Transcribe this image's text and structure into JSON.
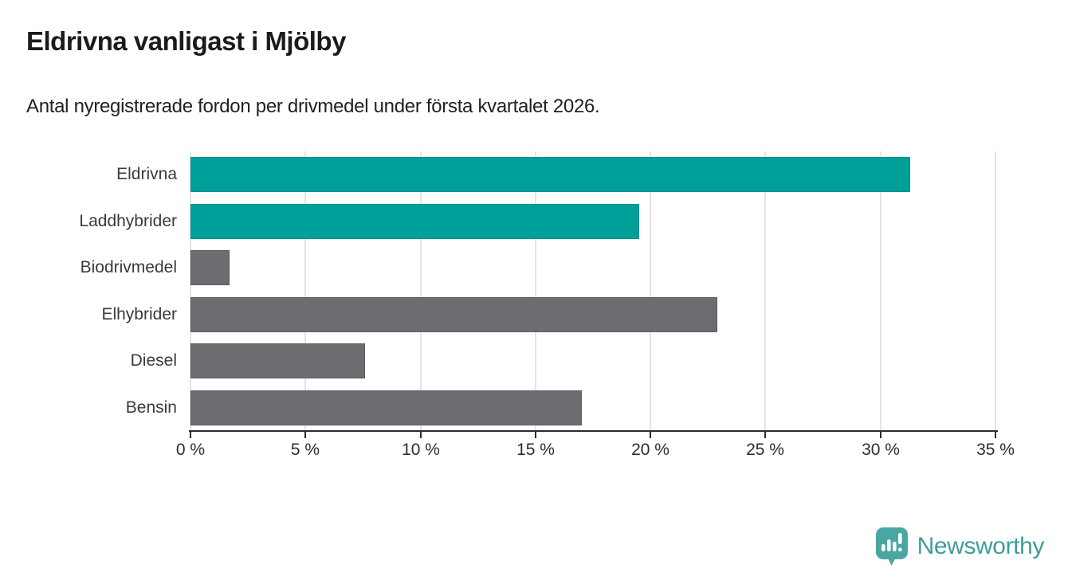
{
  "header": {
    "title": "Eldrivna vanligast i Mjölby",
    "subtitle": "Antal nyregistrerade fordon per drivmedel under första kvartalet 2026."
  },
  "chart_data": {
    "type": "bar",
    "orientation": "horizontal",
    "title": "Eldrivna vanligast i Mjölby",
    "subtitle": "Antal nyregistrerade fordon per drivmedel under första kvartalet 2026.",
    "categories": [
      "Eldrivna",
      "Laddhybrider",
      "Biodrivmedel",
      "Elhybrider",
      "Diesel",
      "Bensin"
    ],
    "values": [
      31.3,
      19.5,
      1.7,
      22.9,
      7.6,
      17.0
    ],
    "unit": "%",
    "bar_color_keys": [
      "teal",
      "teal",
      "gray",
      "gray",
      "gray",
      "gray"
    ],
    "colors": {
      "teal": "#00a09a",
      "teal_border": "#008d88",
      "gray": "#6c6c71",
      "gray_border": "#5a5a60",
      "grid": "#e4e4e4",
      "axis": "#2d2d2d"
    },
    "xlabel": "",
    "ylabel": "",
    "xlim": [
      0,
      35
    ],
    "x_ticks": [
      "0 %",
      "5 %",
      "10 %",
      "15 %",
      "20 %",
      "25 %",
      "30 %",
      "35 %"
    ],
    "grid": "vertical-only",
    "legend": "none"
  },
  "footer": {
    "brand": "Newsworthy",
    "brand_color": "#3e9e9b",
    "icon_color": "#4aa6a2",
    "logo_icon": "speech-bubble-bar-chart-icon"
  }
}
